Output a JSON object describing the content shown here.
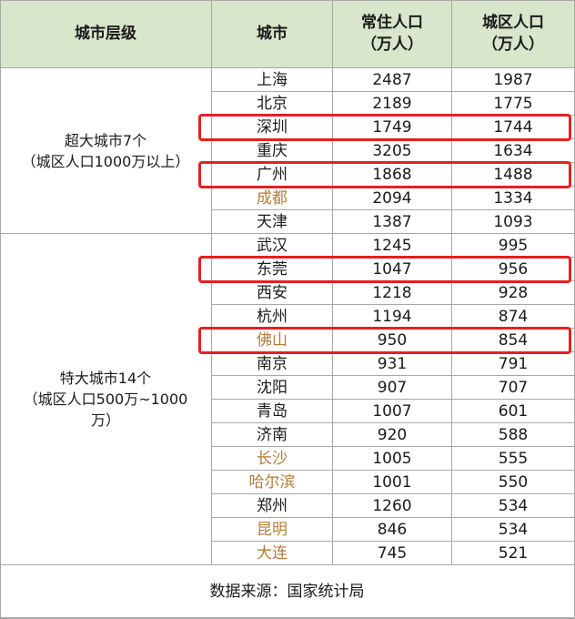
{
  "header": {
    "tier": "城市层级",
    "city": "城市",
    "resident": "常住人口\n（万人）",
    "urban": "城区人口\n（万人）"
  },
  "groups": [
    {
      "label": "超大城市7个\n（城区人口1000万以上）",
      "rows": [
        {
          "city": "上海",
          "resident": "2487",
          "urban": "1987",
          "orange": false,
          "highlight": false
        },
        {
          "city": "北京",
          "resident": "2189",
          "urban": "1775",
          "orange": false,
          "highlight": false
        },
        {
          "city": "深圳",
          "resident": "1749",
          "urban": "1744",
          "orange": false,
          "highlight": true
        },
        {
          "city": "重庆",
          "resident": "3205",
          "urban": "1634",
          "orange": false,
          "highlight": false
        },
        {
          "city": "广州",
          "resident": "1868",
          "urban": "1488",
          "orange": false,
          "highlight": true
        },
        {
          "city": "成都",
          "resident": "2094",
          "urban": "1334",
          "orange": true,
          "highlight": false
        },
        {
          "city": "天津",
          "resident": "1387",
          "urban": "1093",
          "orange": false,
          "highlight": false
        }
      ]
    },
    {
      "label": "特大城市14个\n（城区人口500万~1000\n万）",
      "rows": [
        {
          "city": "武汉",
          "resident": "1245",
          "urban": "995",
          "orange": false,
          "highlight": false
        },
        {
          "city": "东莞",
          "resident": "1047",
          "urban": "956",
          "orange": false,
          "highlight": true
        },
        {
          "city": "西安",
          "resident": "1218",
          "urban": "928",
          "orange": false,
          "highlight": false
        },
        {
          "city": "杭州",
          "resident": "1194",
          "urban": "874",
          "orange": false,
          "highlight": false
        },
        {
          "city": "佛山",
          "resident": "950",
          "urban": "854",
          "orange": true,
          "highlight": true
        },
        {
          "city": "南京",
          "resident": "931",
          "urban": "791",
          "orange": false,
          "highlight": false
        },
        {
          "city": "沈阳",
          "resident": "907",
          "urban": "707",
          "orange": false,
          "highlight": false
        },
        {
          "city": "青岛",
          "resident": "1007",
          "urban": "601",
          "orange": false,
          "highlight": false
        },
        {
          "city": "济南",
          "resident": "920",
          "urban": "588",
          "orange": false,
          "highlight": false
        },
        {
          "city": "长沙",
          "resident": "1005",
          "urban": "555",
          "orange": true,
          "highlight": false
        },
        {
          "city": "哈尔滨",
          "resident": "1001",
          "urban": "550",
          "orange": true,
          "highlight": false
        },
        {
          "city": "郑州",
          "resident": "1260",
          "urban": "534",
          "orange": false,
          "highlight": false
        },
        {
          "city": "昆明",
          "resident": "846",
          "urban": "534",
          "orange": true,
          "highlight": false
        },
        {
          "city": "大连",
          "resident": "745",
          "urban": "521",
          "orange": true,
          "highlight": false
        }
      ]
    }
  ],
  "footer": {
    "source": "数据来源：国家统计局"
  },
  "colors": {
    "header_bg": "#d8e6cc",
    "orange_text": "#b07d3a",
    "highlight": "#e52020"
  }
}
